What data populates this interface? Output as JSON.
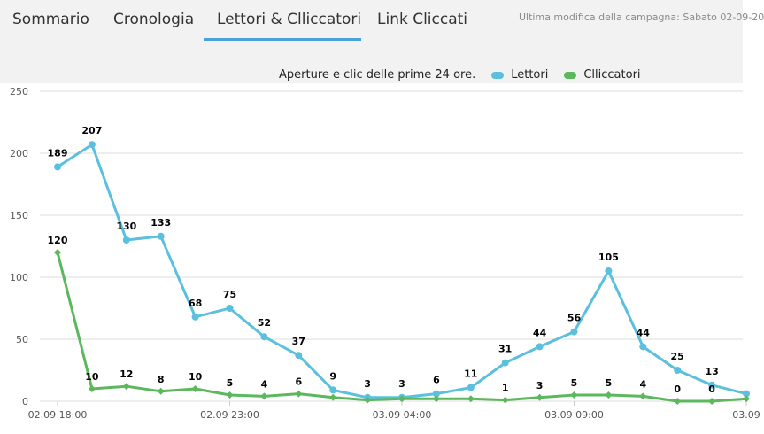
{
  "tabs": [
    {
      "label": "Sommario"
    },
    {
      "label": "Cronologia"
    },
    {
      "label": "Lettori & Clliccatori"
    },
    {
      "label": "Link Cliccati"
    }
  ],
  "active_tab": 2,
  "last_modified": "Ultima modifica della campagna:  Sabato 02-09-20",
  "colors": {
    "lettori": "#5bc0de",
    "clliccatori": "#5cb85c",
    "accent": "#4aa3d8"
  },
  "chart_data": {
    "type": "line",
    "title": "Aperture e clic delle prime 24 ore.",
    "ylim": [
      0,
      250
    ],
    "yticks": [
      0,
      50,
      100,
      150,
      200,
      250
    ],
    "xtick_labels": [
      {
        "index": 0,
        "label": "02.09 18:00"
      },
      {
        "index": 5,
        "label": "02.09 23:00"
      },
      {
        "index": 10,
        "label": "03.09 04:00"
      },
      {
        "index": 15,
        "label": "03.09 09:00"
      },
      {
        "index": 20,
        "label": "03.09"
      }
    ],
    "series": [
      {
        "name": "Lettori",
        "values": [
          189,
          207,
          130,
          133,
          68,
          75,
          52,
          37,
          9,
          3,
          3,
          6,
          11,
          31,
          44,
          56,
          105,
          44,
          25,
          13,
          6
        ],
        "labels": [
          "189",
          "207",
          "130",
          "133",
          "68",
          "75",
          "52",
          "37",
          "9",
          "3",
          "3",
          "6",
          "11",
          "31",
          "44",
          "56",
          "105",
          "44",
          "25",
          "13",
          ""
        ]
      },
      {
        "name": "Clliccatori",
        "values": [
          120,
          10,
          12,
          8,
          10,
          5,
          4,
          6,
          3,
          1,
          2,
          2,
          2,
          1,
          3,
          5,
          5,
          4,
          0,
          0,
          2
        ],
        "labels": [
          "120",
          "10",
          "12",
          "8",
          "10",
          "5",
          "4",
          "6",
          "",
          "",
          "",
          "",
          "",
          "1",
          "3",
          "5",
          "5",
          "4",
          "0",
          "0",
          ""
        ]
      }
    ]
  }
}
